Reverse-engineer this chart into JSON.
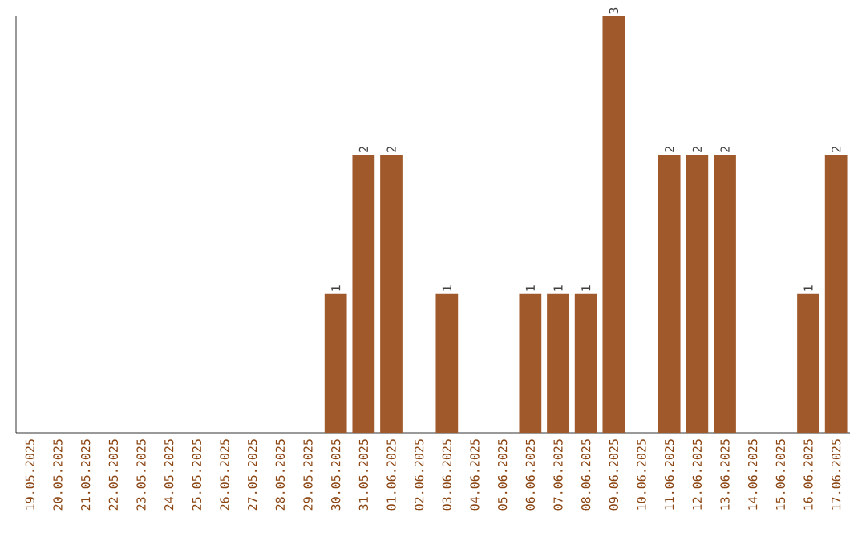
{
  "chart_data": {
    "type": "bar",
    "categories": [
      "19.05.2025",
      "20.05.2025",
      "21.05.2025",
      "22.05.2025",
      "23.05.2025",
      "24.05.2025",
      "25.05.2025",
      "26.05.2025",
      "27.05.2025",
      "28.05.2025",
      "29.05.2025",
      "30.05.2025",
      "31.05.2025",
      "01.06.2025",
      "02.06.2025",
      "03.06.2025",
      "04.06.2025",
      "05.06.2025",
      "06.06.2025",
      "07.06.2025",
      "08.06.2025",
      "09.06.2025",
      "10.06.2025",
      "11.06.2025",
      "12.06.2025",
      "13.06.2025",
      "14.06.2025",
      "15.06.2025",
      "16.06.2025",
      "17.06.2025"
    ],
    "values": [
      0,
      0,
      0,
      0,
      0,
      0,
      0,
      0,
      0,
      0,
      0,
      1,
      2,
      2,
      0,
      1,
      0,
      0,
      1,
      1,
      1,
      3,
      0,
      2,
      2,
      2,
      0,
      0,
      1,
      2
    ],
    "value_labels": [
      null,
      null,
      null,
      null,
      null,
      null,
      null,
      null,
      null,
      null,
      null,
      "1",
      "2",
      "2",
      null,
      "1",
      null,
      null,
      "1",
      "1",
      "1",
      "3",
      null,
      "2",
      "2",
      "2",
      null,
      null,
      "1",
      "2"
    ],
    "color": "#a0592a"
  }
}
